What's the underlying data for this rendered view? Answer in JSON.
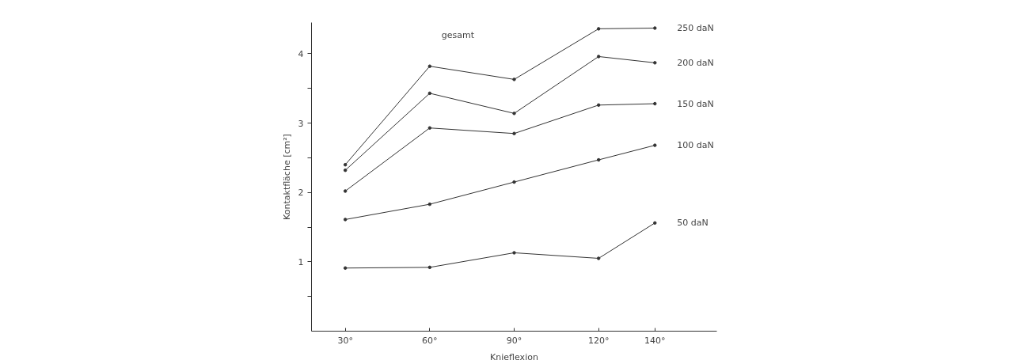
{
  "chart_data": {
    "type": "line",
    "title": "gesamt",
    "xlabel": "Knieflexion",
    "ylabel": "Kontaktfläche [cm²]",
    "x": [
      30,
      60,
      90,
      120,
      140
    ],
    "series": [
      {
        "name": "250 daN",
        "color": "#333333",
        "values": [
          2.4,
          3.82,
          3.63,
          4.36,
          4.37
        ]
      },
      {
        "name": "200 daN",
        "color": "#333333",
        "values": [
          2.32,
          3.43,
          3.14,
          3.96,
          3.87
        ]
      },
      {
        "name": "150 daN",
        "color": "#333333",
        "values": [
          2.02,
          2.93,
          2.85,
          3.26,
          3.28
        ]
      },
      {
        "name": "100 daN",
        "color": "#333333",
        "values": [
          1.61,
          1.83,
          2.15,
          2.47,
          2.68
        ]
      },
      {
        "name": "50 daN",
        "color": "#333333",
        "values": [
          0.91,
          0.92,
          1.13,
          1.05,
          1.56
        ]
      }
    ],
    "xlim": [
      18,
      162
    ],
    "ylim": [
      0,
      4.45
    ],
    "xticks": [
      {
        "value": 30,
        "label": "30°"
      },
      {
        "value": 60,
        "label": "60°"
      },
      {
        "value": 90,
        "label": "90°"
      },
      {
        "value": 120,
        "label": "120°"
      },
      {
        "value": 140,
        "label": "140°"
      }
    ],
    "yticks": [
      {
        "value": 0.5,
        "label": null
      },
      1,
      {
        "value": 1.5,
        "label": null
      },
      2,
      {
        "value": 2.5,
        "label": null
      },
      3,
      {
        "value": 3.5,
        "label": null
      },
      4
    ],
    "marker": "circle",
    "line_style": "solid",
    "grid": false,
    "legend": false
  }
}
